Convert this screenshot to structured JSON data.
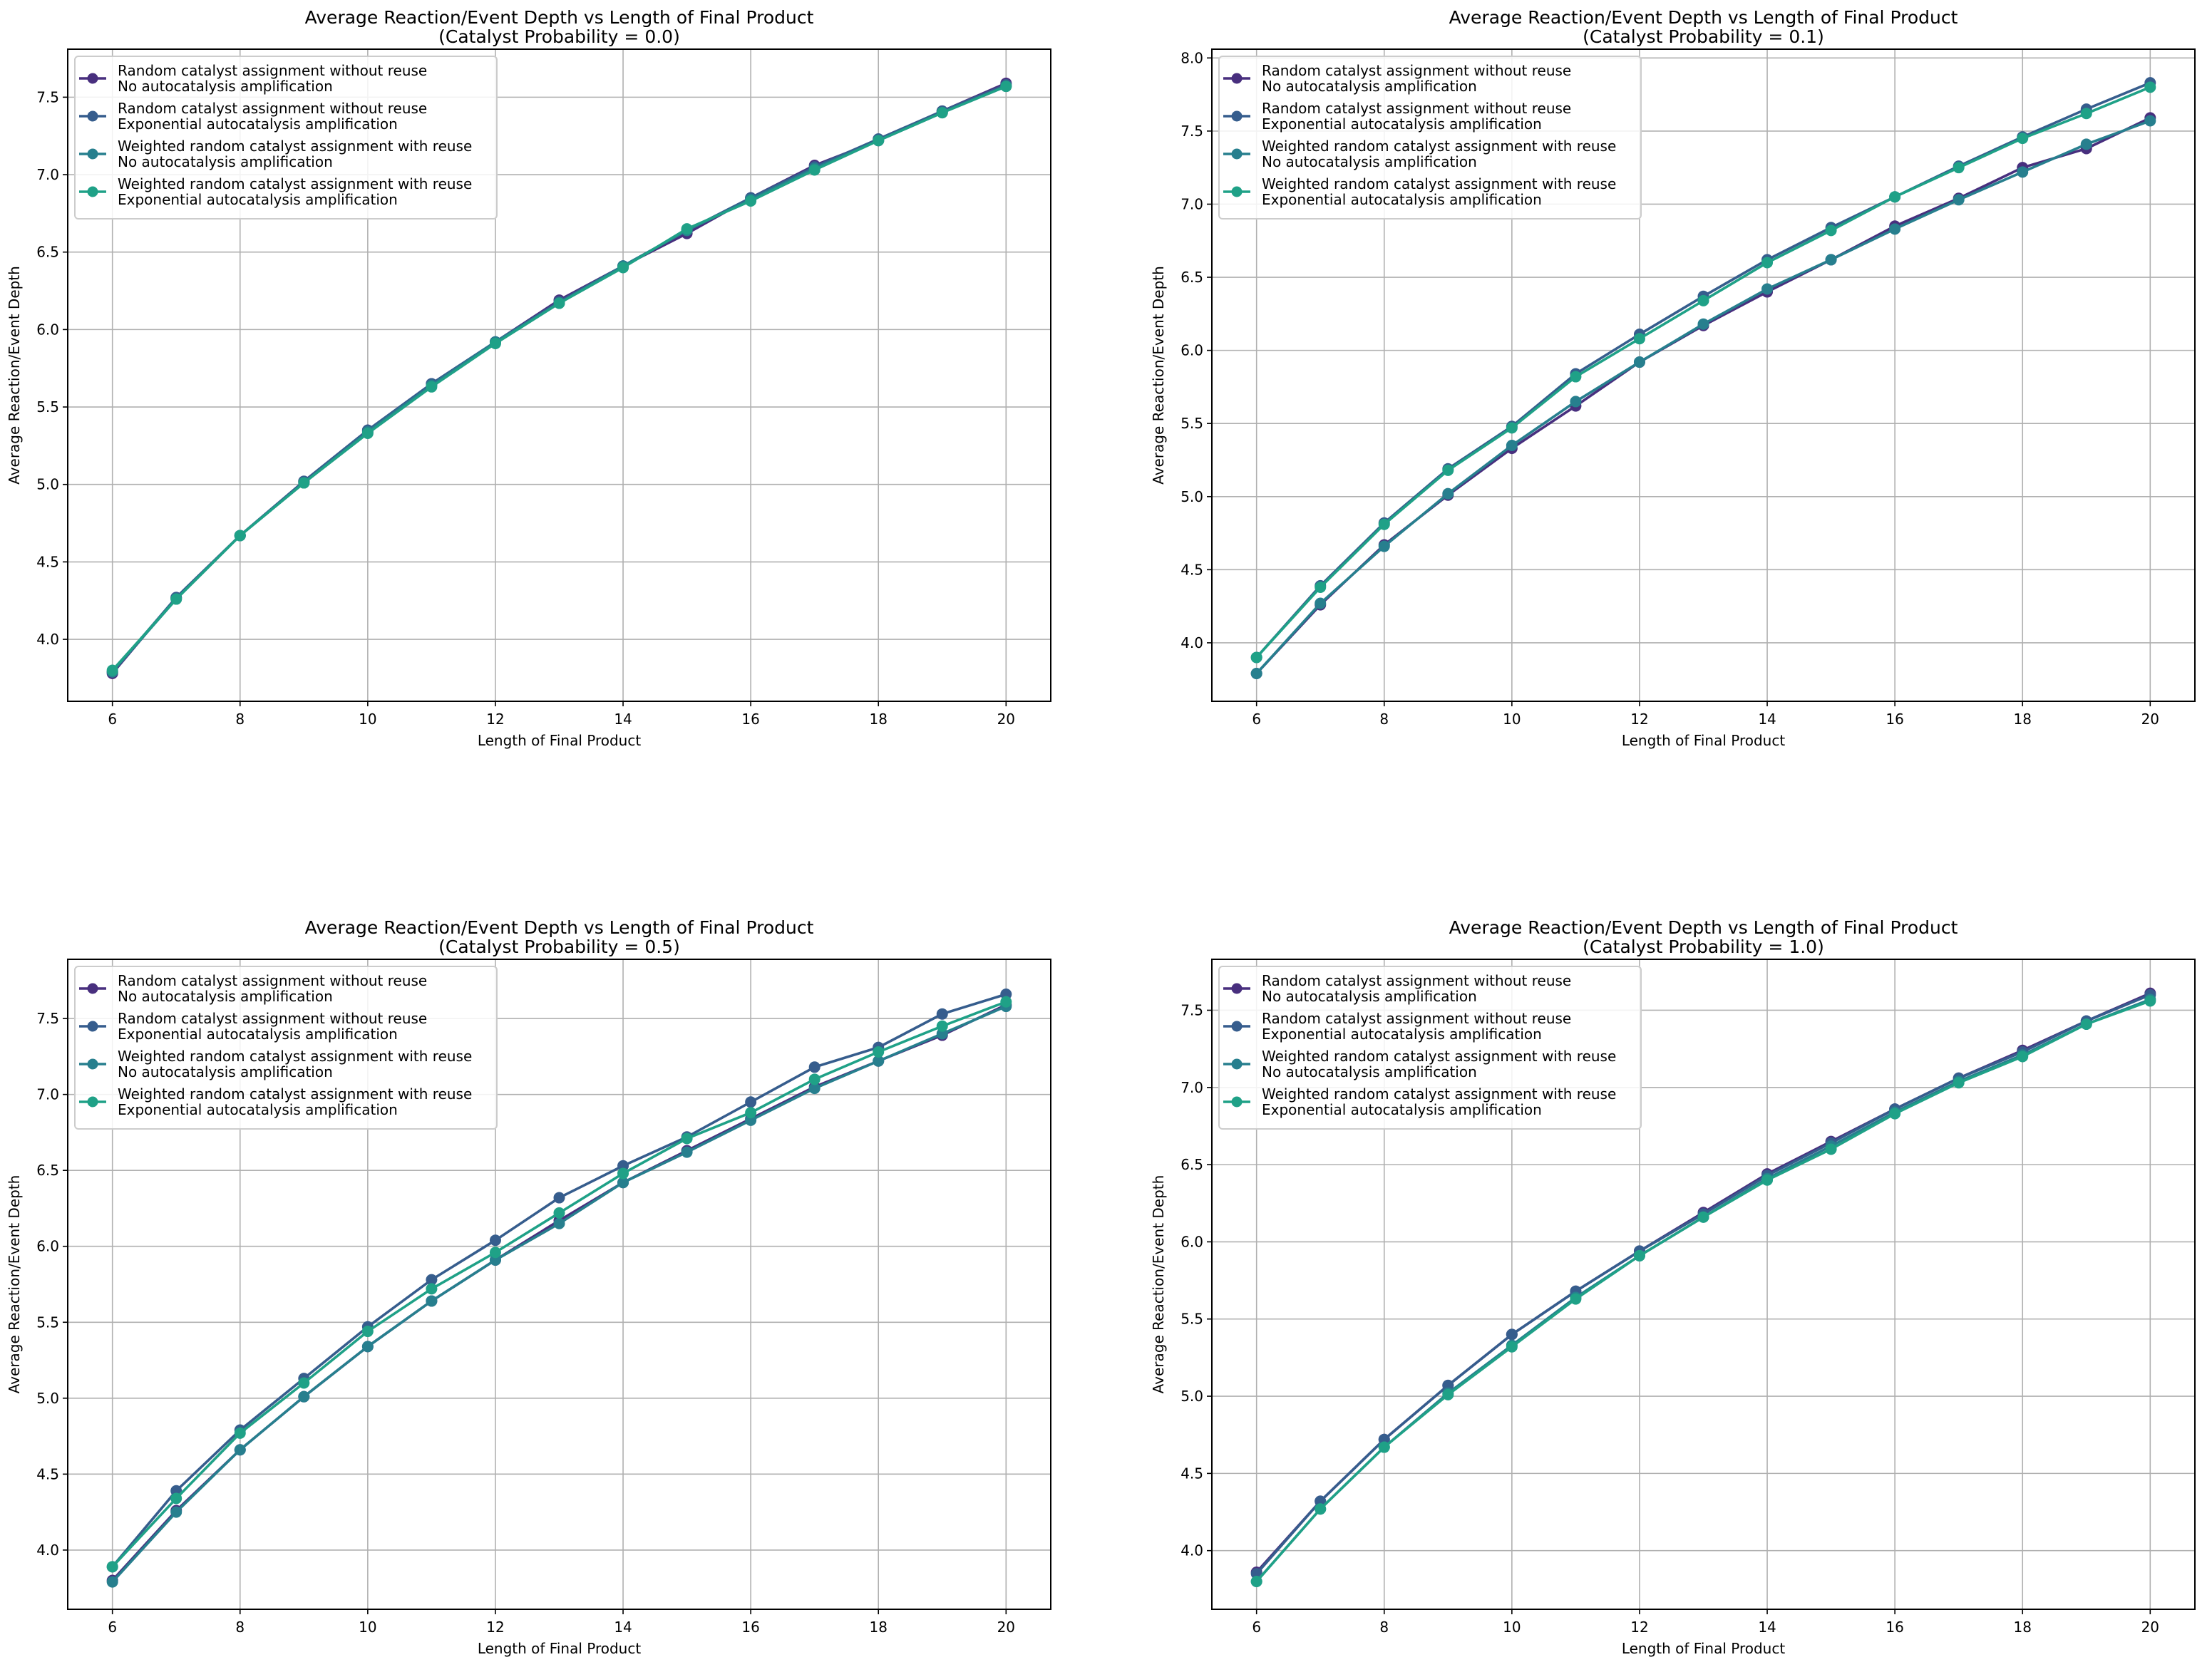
{
  "colors": [
    "#482f7e",
    "#365d8d",
    "#277f8e",
    "#1fa187"
  ],
  "chart_data": [
    {
      "type": "line",
      "title": "Average Reaction/Event Depth vs Length of Final Product",
      "subtitle": "(Catalyst Probability = 0.0)",
      "xlabel": "Length of Final Product",
      "ylabel": "Average Reaction/Event Depth",
      "x": [
        6,
        7,
        8,
        9,
        10,
        11,
        12,
        13,
        14,
        15,
        16,
        17,
        18,
        19,
        20
      ],
      "xticks": [
        6,
        8,
        10,
        12,
        14,
        16,
        18,
        20
      ],
      "yticks": [
        4.0,
        4.5,
        5.0,
        5.5,
        6.0,
        6.5,
        7.0,
        7.5
      ],
      "xlim": [
        5.3,
        20.7
      ],
      "ylim": [
        3.6,
        7.81
      ],
      "grid": true,
      "legend": "top-left",
      "series": [
        {
          "name": "Random catalyst assignment without reuse\nNo autocatalysis amplification",
          "values": [
            3.78,
            4.27,
            4.67,
            5.02,
            5.35,
            5.65,
            5.92,
            6.19,
            6.41,
            6.62,
            6.85,
            7.06,
            7.22,
            7.41,
            7.59
          ]
        },
        {
          "name": "Random catalyst assignment without reuse\nExponential autocatalysis amplification",
          "values": [
            3.79,
            4.27,
            4.67,
            5.02,
            5.35,
            5.65,
            5.92,
            6.18,
            6.41,
            6.64,
            6.85,
            7.05,
            7.23,
            7.41,
            7.58
          ]
        },
        {
          "name": "Weighted random catalyst assignment with reuse\nNo autocatalysis amplification",
          "values": [
            3.79,
            4.26,
            4.67,
            5.01,
            5.34,
            5.64,
            5.92,
            6.17,
            6.41,
            6.64,
            6.84,
            7.04,
            7.22,
            7.4,
            7.57
          ]
        },
        {
          "name": "Weighted random catalyst assignment with reuse\nExponential autocatalysis amplification",
          "values": [
            3.8,
            4.26,
            4.67,
            5.01,
            5.33,
            5.63,
            5.91,
            6.17,
            6.4,
            6.65,
            6.83,
            7.03,
            7.22,
            7.4,
            7.57
          ]
        }
      ]
    },
    {
      "type": "line",
      "title": "Average Reaction/Event Depth vs Length of Final Product",
      "subtitle": "(Catalyst Probability = 0.1)",
      "xlabel": "Length of Final Product",
      "ylabel": "Average Reaction/Event Depth",
      "x": [
        6,
        7,
        8,
        9,
        10,
        11,
        12,
        13,
        14,
        15,
        16,
        17,
        18,
        19,
        20
      ],
      "xticks": [
        6,
        8,
        10,
        12,
        14,
        16,
        18,
        20
      ],
      "yticks": [
        4.0,
        4.5,
        5.0,
        5.5,
        6.0,
        6.5,
        7.0,
        7.5,
        8.0
      ],
      "xlim": [
        5.3,
        20.7
      ],
      "ylim": [
        3.6,
        8.06
      ],
      "grid": true,
      "legend": "top-left",
      "series": [
        {
          "name": "Random catalyst assignment without reuse\nNo autocatalysis amplification",
          "values": [
            3.79,
            4.26,
            4.67,
            5.01,
            5.33,
            5.62,
            5.92,
            6.17,
            6.4,
            6.62,
            6.85,
            7.04,
            7.25,
            7.38,
            7.59
          ]
        },
        {
          "name": "Random catalyst assignment without reuse\nExponential autocatalysis amplification",
          "values": [
            3.9,
            4.39,
            4.82,
            5.19,
            5.48,
            5.84,
            6.11,
            6.37,
            6.62,
            6.84,
            7.05,
            7.26,
            7.46,
            7.65,
            7.83
          ]
        },
        {
          "name": "Weighted random catalyst assignment with reuse\nNo autocatalysis amplification",
          "values": [
            3.79,
            4.27,
            4.66,
            5.02,
            5.35,
            5.65,
            5.92,
            6.18,
            6.42,
            6.62,
            6.83,
            7.03,
            7.22,
            7.41,
            7.57
          ]
        },
        {
          "name": "Weighted random catalyst assignment with reuse\nExponential autocatalysis amplification",
          "values": [
            3.9,
            4.38,
            4.81,
            5.18,
            5.47,
            5.82,
            6.08,
            6.34,
            6.6,
            6.82,
            7.05,
            7.25,
            7.45,
            7.62,
            7.8
          ]
        }
      ]
    },
    {
      "type": "line",
      "title": "Average Reaction/Event Depth vs Length of Final Product",
      "subtitle": "(Catalyst Probability = 0.5)",
      "xlabel": "Length of Final Product",
      "ylabel": "Average Reaction/Event Depth",
      "x": [
        6,
        7,
        8,
        9,
        10,
        11,
        12,
        13,
        14,
        15,
        16,
        17,
        18,
        19,
        20
      ],
      "xticks": [
        6,
        8,
        10,
        12,
        14,
        16,
        18,
        20
      ],
      "yticks": [
        4.0,
        4.5,
        5.0,
        5.5,
        6.0,
        6.5,
        7.0,
        7.5
      ],
      "xlim": [
        5.3,
        20.7
      ],
      "ylim": [
        3.61,
        7.89
      ],
      "grid": true,
      "legend": "top-left",
      "series": [
        {
          "name": "Random catalyst assignment without reuse\nNo autocatalysis amplification",
          "values": [
            3.8,
            4.26,
            4.66,
            5.01,
            5.34,
            5.64,
            5.91,
            6.17,
            6.42,
            6.63,
            6.84,
            7.05,
            7.22,
            7.39,
            7.59
          ]
        },
        {
          "name": "Random catalyst assignment without reuse\nExponential autocatalysis amplification",
          "values": [
            3.89,
            4.39,
            4.79,
            5.13,
            5.47,
            5.78,
            6.04,
            6.32,
            6.53,
            6.72,
            6.95,
            7.18,
            7.31,
            7.53,
            7.66
          ]
        },
        {
          "name": "Weighted random catalyst assignment with reuse\nNo autocatalysis amplification",
          "values": [
            3.79,
            4.25,
            4.66,
            5.01,
            5.34,
            5.64,
            5.91,
            6.15,
            6.42,
            6.62,
            6.83,
            7.04,
            7.22,
            7.4,
            7.58
          ]
        },
        {
          "name": "Weighted random catalyst assignment with reuse\nExponential autocatalysis amplification",
          "values": [
            3.89,
            4.34,
            4.77,
            5.1,
            5.44,
            5.72,
            5.96,
            6.22,
            6.48,
            6.71,
            6.88,
            7.1,
            7.28,
            7.45,
            7.61
          ]
        }
      ]
    },
    {
      "type": "line",
      "title": "Average Reaction/Event Depth vs Length of Final Product",
      "subtitle": "(Catalyst Probability = 1.0)",
      "xlabel": "Length of Final Product",
      "ylabel": "Average Reaction/Event Depth",
      "x": [
        6,
        7,
        8,
        9,
        10,
        11,
        12,
        13,
        14,
        15,
        16,
        17,
        18,
        19,
        20
      ],
      "xticks": [
        6,
        8,
        10,
        12,
        14,
        16,
        18,
        20
      ],
      "yticks": [
        4.0,
        4.5,
        5.0,
        5.5,
        6.0,
        6.5,
        7.0,
        7.5
      ],
      "xlim": [
        5.3,
        20.7
      ],
      "ylim": [
        3.62,
        7.83
      ],
      "grid": true,
      "legend": "top-left",
      "series": [
        {
          "name": "Random catalyst assignment without reuse\nNo autocatalysis amplification",
          "values": [
            3.86,
            4.32,
            4.72,
            5.07,
            5.4,
            5.68,
            5.94,
            6.19,
            6.44,
            6.65,
            6.86,
            7.06,
            7.24,
            7.43,
            7.61
          ]
        },
        {
          "name": "Random catalyst assignment without reuse\nExponential autocatalysis amplification",
          "values": [
            3.85,
            4.32,
            4.72,
            5.07,
            5.4,
            5.68,
            5.94,
            6.18,
            6.43,
            6.64,
            6.86,
            7.06,
            7.23,
            7.43,
            7.6
          ]
        },
        {
          "name": "Weighted random catalyst assignment with reuse\nNo autocatalysis amplification",
          "values": [
            3.8,
            4.27,
            4.67,
            5.02,
            5.33,
            5.64,
            5.91,
            6.16,
            6.41,
            6.62,
            6.84,
            7.04,
            7.21,
            7.41,
            7.57
          ]
        },
        {
          "name": "Weighted random catalyst assignment with reuse\nExponential autocatalysis amplification",
          "values": [
            3.8,
            4.27,
            4.67,
            5.01,
            5.32,
            5.63,
            5.91,
            6.16,
            6.4,
            6.6,
            6.83,
            7.03,
            7.2,
            7.41,
            7.56
          ]
        }
      ]
    }
  ]
}
